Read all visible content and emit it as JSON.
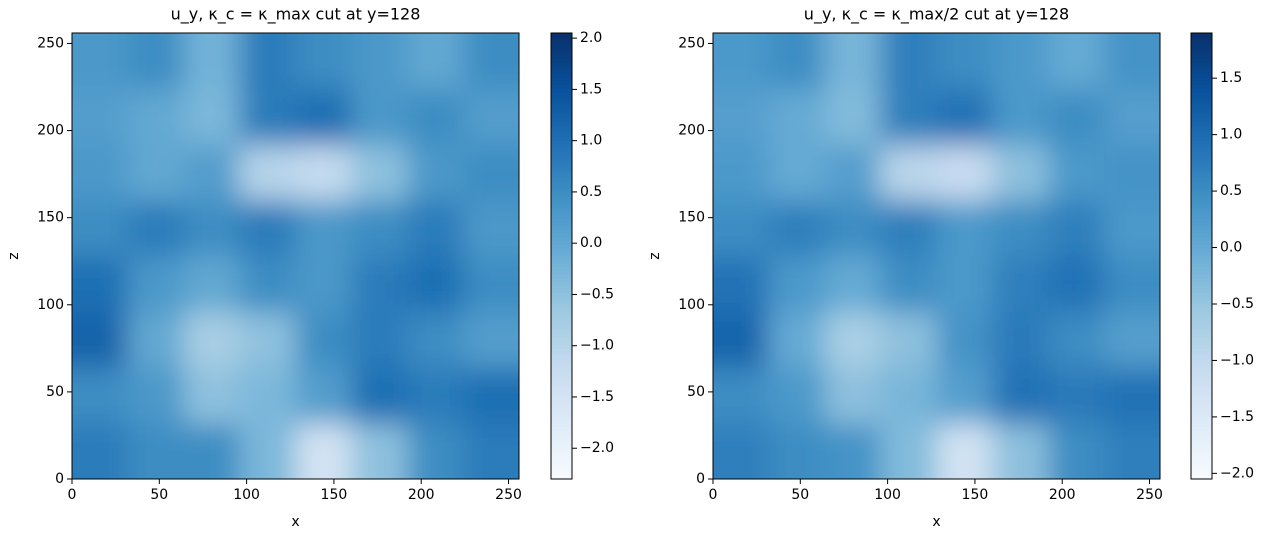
{
  "chart_data": [
    {
      "type": "heatmap",
      "title": "u_y,  κ_c = κ_max  cut at y=128",
      "xlabel": "x",
      "ylabel": "z",
      "x": [
        16,
        48,
        80,
        112,
        144,
        176,
        208,
        240
      ],
      "y": [
        16,
        48,
        80,
        112,
        144,
        176,
        208,
        240
      ],
      "values": [
        [
          0.8,
          0.5,
          0.5,
          -0.3,
          -1.5,
          -0.5,
          0.5,
          0.8
        ],
        [
          0.5,
          0.3,
          -0.5,
          -0.3,
          0.2,
          1.0,
          0.8,
          1.0
        ],
        [
          1.2,
          0.0,
          -0.8,
          -0.5,
          0.5,
          0.8,
          0.5,
          0.2
        ],
        [
          1.0,
          0.3,
          0.0,
          0.5,
          0.3,
          0.8,
          1.0,
          0.5
        ],
        [
          0.5,
          0.8,
          0.5,
          0.8,
          0.3,
          0.5,
          0.8,
          0.3
        ],
        [
          0.3,
          0.0,
          0.2,
          -1.0,
          -1.2,
          -0.5,
          0.3,
          0.5
        ],
        [
          0.2,
          0.0,
          -0.3,
          0.8,
          1.0,
          0.3,
          0.5,
          0.2
        ],
        [
          0.3,
          0.5,
          -0.2,
          0.8,
          0.5,
          0.3,
          0.0,
          0.5
        ]
      ],
      "xlim": [
        0,
        256
      ],
      "ylim": [
        0,
        256
      ],
      "xticks": [
        0,
        50,
        100,
        150,
        200,
        250
      ],
      "yticks": [
        0,
        50,
        100,
        150,
        200,
        250
      ],
      "clim": [
        -2.3,
        2.05
      ],
      "cticks": [
        {
          "value": -2.0,
          "label": "−2.0"
        },
        {
          "value": -1.5,
          "label": "−1.5"
        },
        {
          "value": -1.0,
          "label": "−1.0"
        },
        {
          "value": -0.5,
          "label": "−0.5"
        },
        {
          "value": 0.0,
          "label": "0.0"
        },
        0.5,
        {
          "value": 1.0,
          "label": "1.0"
        },
        1.5,
        {
          "value": 2.0,
          "label": "2.0"
        }
      ],
      "colormap": [
        "#f7fbff",
        "#deebf7",
        "#c6dbef",
        "#9ecae1",
        "#6baed6",
        "#4292c6",
        "#2171b5",
        "#08519c",
        "#08306b"
      ]
    },
    {
      "type": "heatmap",
      "title": "u_y,  κ_c = κ_max/2  cut at y=128",
      "xlabel": "x",
      "ylabel": "z",
      "x": [
        16,
        48,
        80,
        112,
        144,
        176,
        208,
        240
      ],
      "y": [
        16,
        48,
        80,
        112,
        144,
        176,
        208,
        240
      ],
      "values": [
        [
          0.7,
          0.5,
          0.4,
          -0.3,
          -1.3,
          -0.4,
          0.5,
          0.7
        ],
        [
          0.5,
          0.3,
          -0.4,
          -0.2,
          0.2,
          0.9,
          0.8,
          0.9
        ],
        [
          1.1,
          0.0,
          -0.7,
          -0.4,
          0.4,
          0.8,
          0.5,
          0.2
        ],
        [
          0.9,
          0.3,
          0.0,
          0.5,
          0.3,
          0.7,
          0.9,
          0.5
        ],
        [
          0.5,
          0.7,
          0.5,
          0.7,
          0.3,
          0.5,
          0.7,
          0.3
        ],
        [
          0.3,
          0.0,
          0.2,
          -0.9,
          -1.1,
          -0.4,
          0.3,
          0.4
        ],
        [
          0.2,
          0.0,
          -0.3,
          0.7,
          0.9,
          0.3,
          0.5,
          0.2
        ],
        [
          0.3,
          0.5,
          -0.2,
          0.7,
          0.5,
          0.3,
          0.0,
          0.4
        ]
      ],
      "xlim": [
        0,
        256
      ],
      "ylim": [
        0,
        256
      ],
      "xticks": [
        0,
        50,
        100,
        150,
        200,
        250
      ],
      "yticks": [
        0,
        50,
        100,
        150,
        200,
        250
      ],
      "clim": [
        -2.05,
        1.9
      ],
      "cticks": [
        {
          "value": -2.0,
          "label": "−2.0"
        },
        {
          "value": -1.5,
          "label": "−1.5"
        },
        {
          "value": -1.0,
          "label": "−1.0"
        },
        {
          "value": -0.5,
          "label": "−0.5"
        },
        {
          "value": 0.0,
          "label": "0.0"
        },
        0.5,
        {
          "value": 1.0,
          "label": "1.0"
        },
        1.5
      ],
      "colormap": [
        "#f7fbff",
        "#deebf7",
        "#c6dbef",
        "#9ecae1",
        "#6baed6",
        "#4292c6",
        "#2171b5",
        "#08519c",
        "#08306b"
      ]
    }
  ]
}
